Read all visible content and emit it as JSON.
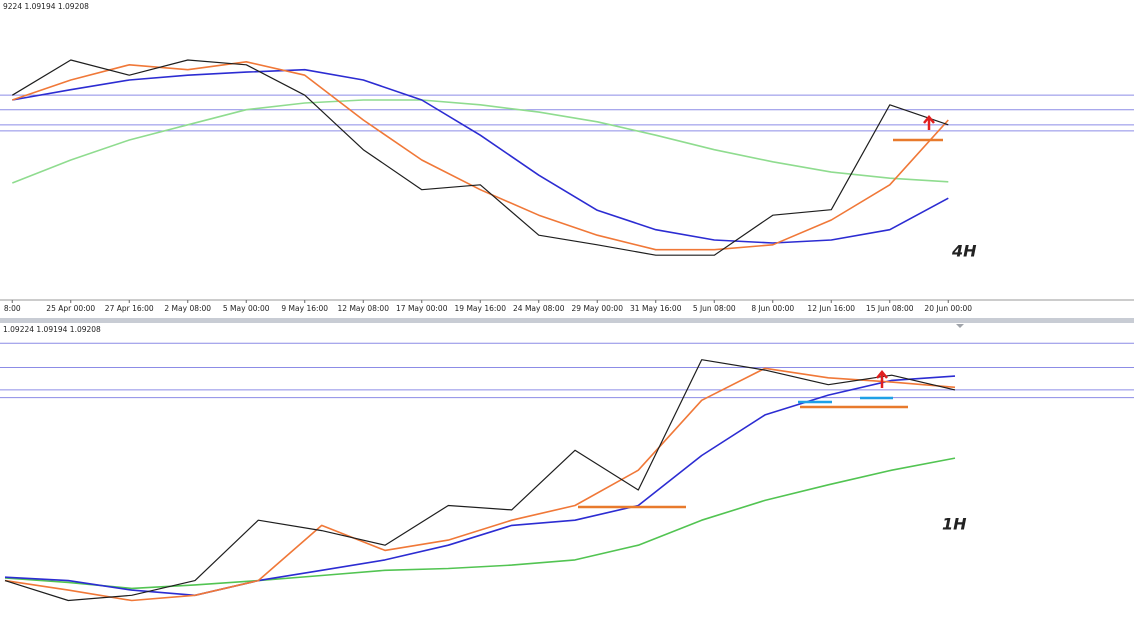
{
  "chart_data": [
    {
      "type": "line",
      "timeframe": "4H",
      "price_info": "9224 1.09194 1.09208",
      "categories": [
        "8:00",
        "25 Apr 00:00",
        "27 Apr 16:00",
        "2 May 08:00",
        "5 May 00:00",
        "9 May 16:00",
        "12 May 08:00",
        "17 May 00:00",
        "19 May 16:00",
        "24 May 08:00",
        "29 May 00:00",
        "31 May 16:00",
        "5 Jun 08:00",
        "8 Jun 00:00",
        "12 Jun 16:00",
        "15 Jun 08:00",
        "20 Jun 00:00"
      ],
      "ylim": [
        1.0628,
        1.1123
      ],
      "levels": [
        1.0966,
        1.0942,
        1.0917,
        1.0907
      ],
      "level_color": "#8c8ce6",
      "series": [
        {
          "color": "#8fdc8f",
          "values": [
            1.0821,
            1.0859,
            1.0892,
            1.0917,
            1.0942,
            1.0953,
            1.0958,
            1.0958,
            1.095,
            1.0938,
            1.0922,
            1.09,
            1.0876,
            1.0856,
            1.0839,
            1.0829,
            1.0823
          ]
        },
        {
          "color": "#2c2cd2",
          "values": [
            1.0958,
            1.0975,
            1.0991,
            1.0999,
            1.1004,
            1.1008,
            1.0991,
            1.0958,
            1.09,
            1.0834,
            1.0776,
            1.0744,
            1.0727,
            1.0722,
            1.0727,
            1.0744,
            1.0796
          ]
        },
        {
          "color": "#f07838",
          "values": [
            1.0958,
            1.0991,
            1.1016,
            1.1008,
            1.1021,
            1.0999,
            1.0925,
            1.0859,
            1.081,
            1.0768,
            1.0735,
            1.0711,
            1.0711,
            1.0719,
            1.076,
            1.0818,
            1.0925
          ]
        },
        {
          "color": "#1e1e1e",
          "values": [
            1.0966,
            1.1024,
            1.0999,
            1.1024,
            1.1016,
            1.0966,
            1.0876,
            1.081,
            1.0818,
            1.0735,
            1.0719,
            1.0702,
            1.0702,
            1.0768,
            1.0777,
            1.095,
            1.0917
          ]
        }
      ]
    },
    {
      "type": "line",
      "timeframe": "1H",
      "price_info": "1.09224 1.09194 1.09208",
      "ylim": [
        1.0634,
        1.0999
      ],
      "levels": [
        1.0972,
        1.0944,
        1.0918,
        1.0909
      ],
      "level_color": "#8c8ce6",
      "series": [
        {
          "color": "#52c452",
          "values": [
            1.07,
            1.0695,
            1.0688,
            1.0692,
            1.0697,
            1.0703,
            1.0709,
            1.0711,
            1.0715,
            1.0721,
            1.0738,
            1.0767,
            1.079,
            1.0808,
            1.0825,
            1.0839
          ]
        },
        {
          "color": "#2c2cd2",
          "values": [
            1.0701,
            1.0697,
            1.0686,
            1.068,
            1.0697,
            1.0709,
            1.0721,
            1.0738,
            1.0761,
            1.0767,
            1.0784,
            1.0842,
            1.0889,
            1.0912,
            1.0929,
            1.0934
          ]
        },
        {
          "color": "#f07838",
          "values": [
            1.0697,
            1.0686,
            1.0674,
            1.068,
            1.0697,
            1.0761,
            1.0732,
            1.0744,
            1.0767,
            1.0784,
            1.0825,
            1.0906,
            1.0943,
            1.0932,
            1.0927,
            1.0921
          ]
        },
        {
          "color": "#1e1e1e",
          "values": [
            1.0697,
            1.0674,
            1.068,
            1.0697,
            1.0767,
            1.0755,
            1.0738,
            1.0784,
            1.0779,
            1.0848,
            1.0802,
            1.0953,
            1.0941,
            1.0924,
            1.0935,
            1.0918
          ]
        }
      ]
    }
  ]
}
